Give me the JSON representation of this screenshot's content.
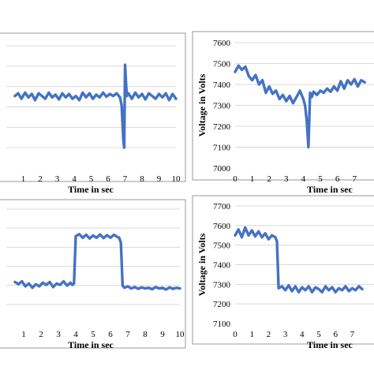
{
  "chart_data": [
    {
      "type": "line",
      "xlabel": "Time in sec",
      "ylabel": "",
      "xticks": [
        1,
        2,
        3,
        4,
        5,
        6,
        7,
        8,
        9,
        10
      ],
      "yticks": [],
      "xlim": [
        0,
        10
      ],
      "ylim": [
        6800,
        7700
      ],
      "grid": true,
      "series": [
        {
          "x": [
            0.5,
            0.7,
            0.9,
            1.1,
            1.3,
            1.5,
            1.7,
            1.9,
            2.1,
            2.3,
            2.5,
            2.7,
            2.9,
            3.1,
            3.3,
            3.5,
            3.7,
            3.9,
            4.1,
            4.3,
            4.5,
            4.7,
            4.9,
            5.1,
            5.3,
            5.5,
            5.7,
            5.9,
            6.1,
            6.3,
            6.5,
            6.7,
            6.8,
            6.9,
            6.95,
            7.0,
            7.05,
            7.1,
            7.2,
            7.4,
            7.6,
            7.8,
            8.0,
            8.2,
            8.4,
            8.6,
            8.8,
            9.0,
            9.2,
            9.4,
            9.6,
            9.8,
            10.0
          ],
          "y": [
            7330,
            7350,
            7310,
            7355,
            7320,
            7345,
            7300,
            7350,
            7330,
            7310,
            7355,
            7320,
            7340,
            7305,
            7350,
            7320,
            7345,
            7310,
            7330,
            7300,
            7355,
            7320,
            7350,
            7310,
            7340,
            7320,
            7355,
            7325,
            7345,
            7330,
            7350,
            7320,
            7260,
            7000,
            6950,
            7560,
            7440,
            7330,
            7350,
            7310,
            7355,
            7320,
            7345,
            7305,
            7350,
            7330,
            7310,
            7345,
            7320,
            7350,
            7300,
            7345,
            7310
          ]
        }
      ]
    },
    {
      "type": "line",
      "xlabel": "Time in sec",
      "ylabel": "Voltage in Volts",
      "xticks": [
        0,
        1,
        2,
        3,
        4,
        5,
        6,
        7
      ],
      "yticks": [
        7000,
        7100,
        7200,
        7300,
        7400,
        7500,
        7600
      ],
      "xlim": [
        0,
        8
      ],
      "ylim": [
        7000,
        7600
      ],
      "grid": true,
      "series": [
        {
          "x": [
            0.0,
            0.2,
            0.4,
            0.6,
            0.8,
            1.0,
            1.2,
            1.4,
            1.6,
            1.8,
            2.0,
            2.2,
            2.4,
            2.6,
            2.8,
            3.0,
            3.2,
            3.4,
            3.6,
            3.8,
            4.0,
            4.1,
            4.2,
            4.3,
            4.4,
            4.5,
            4.6,
            4.8,
            5.0,
            5.2,
            5.4,
            5.6,
            5.8,
            6.0,
            6.2,
            6.4,
            6.6,
            6.8,
            7.0,
            7.2,
            7.4,
            7.6
          ],
          "y": [
            7460,
            7490,
            7470,
            7485,
            7440,
            7420,
            7445,
            7400,
            7420,
            7360,
            7390,
            7355,
            7370,
            7330,
            7350,
            7320,
            7345,
            7310,
            7340,
            7370,
            7330,
            7300,
            7230,
            7100,
            7360,
            7340,
            7365,
            7350,
            7370,
            7360,
            7380,
            7365,
            7390,
            7370,
            7415,
            7380,
            7420,
            7400,
            7425,
            7390,
            7420,
            7410
          ]
        }
      ]
    },
    {
      "type": "line",
      "xlabel": "Time in sec",
      "ylabel": "",
      "xticks": [
        1,
        2,
        3,
        4,
        5,
        6,
        7,
        8,
        9,
        10
      ],
      "yticks": [],
      "xlim": [
        0,
        10
      ],
      "ylim": [
        6800,
        8400
      ],
      "grid": true,
      "series": [
        {
          "x": [
            0.5,
            0.7,
            0.9,
            1.1,
            1.3,
            1.5,
            1.7,
            1.9,
            2.1,
            2.3,
            2.5,
            2.7,
            2.9,
            3.1,
            3.3,
            3.5,
            3.7,
            3.8,
            3.9,
            4.0,
            4.2,
            4.4,
            4.6,
            4.8,
            5.0,
            5.2,
            5.4,
            5.6,
            5.8,
            6.0,
            6.2,
            6.4,
            6.5,
            6.6,
            6.7,
            6.8,
            7.0,
            7.2,
            7.4,
            7.6,
            7.8,
            8.0,
            8.2,
            8.4,
            8.6,
            8.8,
            9.0,
            9.2,
            9.4,
            9.6,
            9.8,
            10.0
          ],
          "y": [
            7380,
            7350,
            7390,
            7320,
            7360,
            7300,
            7350,
            7320,
            7370,
            7340,
            7380,
            7310,
            7360,
            7340,
            7390,
            7330,
            7370,
            7340,
            7360,
            8020,
            8050,
            8000,
            8040,
            7990,
            8030,
            8000,
            8045,
            7995,
            8035,
            8000,
            8040,
            8010,
            8000,
            7930,
            7330,
            7300,
            7320,
            7290,
            7310,
            7285,
            7305,
            7290,
            7300,
            7280,
            7310,
            7290,
            7300,
            7275,
            7305,
            7285,
            7300,
            7290
          ]
        }
      ]
    },
    {
      "type": "line",
      "xlabel": "Time in sec",
      "ylabel": "Voltage in Volts",
      "xticks": [
        0,
        1,
        2,
        3,
        4,
        5,
        6,
        7
      ],
      "yticks": [
        7100,
        7200,
        7300,
        7400,
        7500,
        7600,
        7700
      ],
      "xlim": [
        0,
        8
      ],
      "ylim": [
        7100,
        7700
      ],
      "grid": true,
      "series": [
        {
          "x": [
            0.0,
            0.2,
            0.4,
            0.6,
            0.8,
            1.0,
            1.2,
            1.4,
            1.6,
            1.8,
            2.0,
            2.2,
            2.4,
            2.5,
            2.6,
            2.8,
            3.0,
            3.2,
            3.4,
            3.6,
            3.8,
            4.0,
            4.2,
            4.4,
            4.6,
            4.8,
            5.0,
            5.2,
            5.4,
            5.6,
            5.8,
            6.0,
            6.2,
            6.4,
            6.6,
            6.8,
            7.0,
            7.2,
            7.4,
            7.6
          ],
          "y": [
            7550,
            7580,
            7540,
            7590,
            7550,
            7575,
            7545,
            7570,
            7540,
            7560,
            7530,
            7550,
            7540,
            7520,
            7280,
            7290,
            7270,
            7295,
            7265,
            7290,
            7260,
            7285,
            7270,
            7290,
            7260,
            7285,
            7275,
            7260,
            7290,
            7270,
            7285,
            7260,
            7280,
            7270,
            7290,
            7265,
            7280,
            7270,
            7290,
            7275
          ]
        }
      ]
    }
  ]
}
